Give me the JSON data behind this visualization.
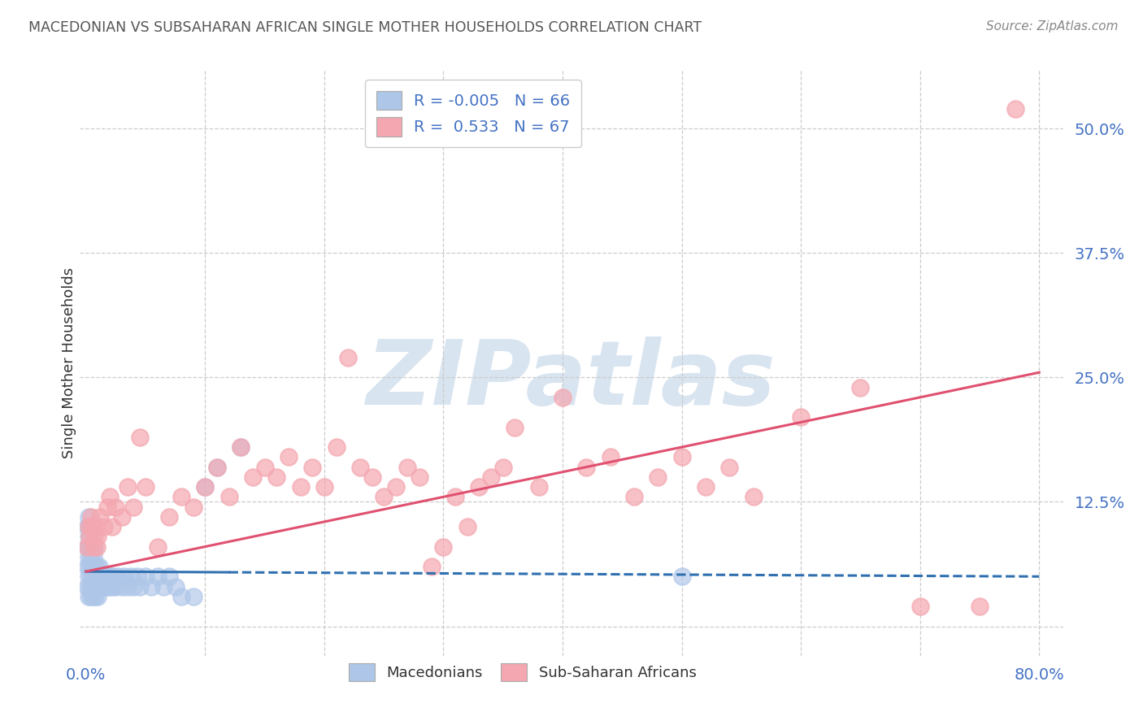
{
  "title": "MACEDONIAN VS SUBSAHARAN AFRICAN SINGLE MOTHER HOUSEHOLDS CORRELATION CHART",
  "source": "Source: ZipAtlas.com",
  "ylabel": "Single Mother Households",
  "xlim": [
    -0.005,
    0.82
  ],
  "ylim": [
    -0.03,
    0.56
  ],
  "yticks": [
    0.0,
    0.125,
    0.25,
    0.375,
    0.5
  ],
  "ytick_labels": [
    "",
    "12.5%",
    "25.0%",
    "37.5%",
    "50.0%"
  ],
  "xticks": [
    0.0,
    0.1,
    0.2,
    0.3,
    0.4,
    0.5,
    0.6,
    0.7,
    0.8
  ],
  "xtick_labels": [
    "0.0%",
    "",
    "",
    "",
    "",
    "",
    "",
    "",
    "80.0%"
  ],
  "macedonian_R": -0.005,
  "macedonian_N": 66,
  "subsaharan_R": 0.533,
  "subsaharan_N": 67,
  "blue_dot_color": "#aec6e8",
  "pink_dot_color": "#f4a7b0",
  "blue_line_color": "#3070b0",
  "pink_line_color": "#e05070",
  "background_color": "#ffffff",
  "grid_color": "#cccccc",
  "axis_label_color": "#4472c4",
  "title_color": "#555555",
  "watermark_color": "#d8e4f0",
  "mac_line_start_y": 0.055,
  "mac_line_end_y": 0.05,
  "sub_line_start_y": 0.055,
  "sub_line_end_y": 0.255,
  "macedonian_x": [
    0.001,
    0.001,
    0.001,
    0.001,
    0.002,
    0.002,
    0.002,
    0.002,
    0.002,
    0.003,
    0.003,
    0.003,
    0.003,
    0.004,
    0.004,
    0.004,
    0.004,
    0.005,
    0.005,
    0.005,
    0.006,
    0.006,
    0.006,
    0.007,
    0.007,
    0.007,
    0.008,
    0.008,
    0.009,
    0.009,
    0.01,
    0.01,
    0.011,
    0.011,
    0.012,
    0.013,
    0.014,
    0.015,
    0.016,
    0.017,
    0.018,
    0.019,
    0.02,
    0.022,
    0.023,
    0.025,
    0.027,
    0.03,
    0.032,
    0.035,
    0.038,
    0.04,
    0.043,
    0.045,
    0.05,
    0.055,
    0.06,
    0.065,
    0.07,
    0.075,
    0.08,
    0.09,
    0.1,
    0.11,
    0.13,
    0.5
  ],
  "macedonian_y": [
    0.04,
    0.06,
    0.08,
    0.1,
    0.03,
    0.05,
    0.07,
    0.09,
    0.11,
    0.04,
    0.06,
    0.08,
    0.1,
    0.03,
    0.05,
    0.07,
    0.09,
    0.04,
    0.06,
    0.08,
    0.03,
    0.05,
    0.07,
    0.04,
    0.06,
    0.08,
    0.03,
    0.05,
    0.04,
    0.06,
    0.03,
    0.05,
    0.04,
    0.06,
    0.05,
    0.04,
    0.05,
    0.04,
    0.05,
    0.04,
    0.05,
    0.04,
    0.05,
    0.04,
    0.05,
    0.04,
    0.05,
    0.04,
    0.05,
    0.04,
    0.05,
    0.04,
    0.05,
    0.04,
    0.05,
    0.04,
    0.05,
    0.04,
    0.05,
    0.04,
    0.03,
    0.03,
    0.14,
    0.16,
    0.18,
    0.05
  ],
  "subsaharan_x": [
    0.001,
    0.002,
    0.003,
    0.004,
    0.005,
    0.006,
    0.007,
    0.008,
    0.009,
    0.01,
    0.012,
    0.015,
    0.018,
    0.02,
    0.022,
    0.025,
    0.03,
    0.035,
    0.04,
    0.045,
    0.05,
    0.06,
    0.07,
    0.08,
    0.09,
    0.1,
    0.11,
    0.12,
    0.13,
    0.14,
    0.15,
    0.16,
    0.17,
    0.18,
    0.19,
    0.2,
    0.21,
    0.22,
    0.23,
    0.24,
    0.25,
    0.26,
    0.27,
    0.28,
    0.29,
    0.3,
    0.31,
    0.32,
    0.33,
    0.34,
    0.35,
    0.36,
    0.38,
    0.4,
    0.42,
    0.44,
    0.46,
    0.48,
    0.5,
    0.52,
    0.54,
    0.56,
    0.6,
    0.65,
    0.7,
    0.75,
    0.78
  ],
  "subsaharan_y": [
    0.08,
    0.1,
    0.09,
    0.11,
    0.1,
    0.08,
    0.09,
    0.1,
    0.08,
    0.09,
    0.11,
    0.1,
    0.12,
    0.13,
    0.1,
    0.12,
    0.11,
    0.14,
    0.12,
    0.19,
    0.14,
    0.08,
    0.11,
    0.13,
    0.12,
    0.14,
    0.16,
    0.13,
    0.18,
    0.15,
    0.16,
    0.15,
    0.17,
    0.14,
    0.16,
    0.14,
    0.18,
    0.27,
    0.16,
    0.15,
    0.13,
    0.14,
    0.16,
    0.15,
    0.06,
    0.08,
    0.13,
    0.1,
    0.14,
    0.15,
    0.16,
    0.2,
    0.14,
    0.23,
    0.16,
    0.17,
    0.13,
    0.15,
    0.17,
    0.14,
    0.16,
    0.13,
    0.21,
    0.24,
    0.02,
    0.02,
    0.52
  ]
}
